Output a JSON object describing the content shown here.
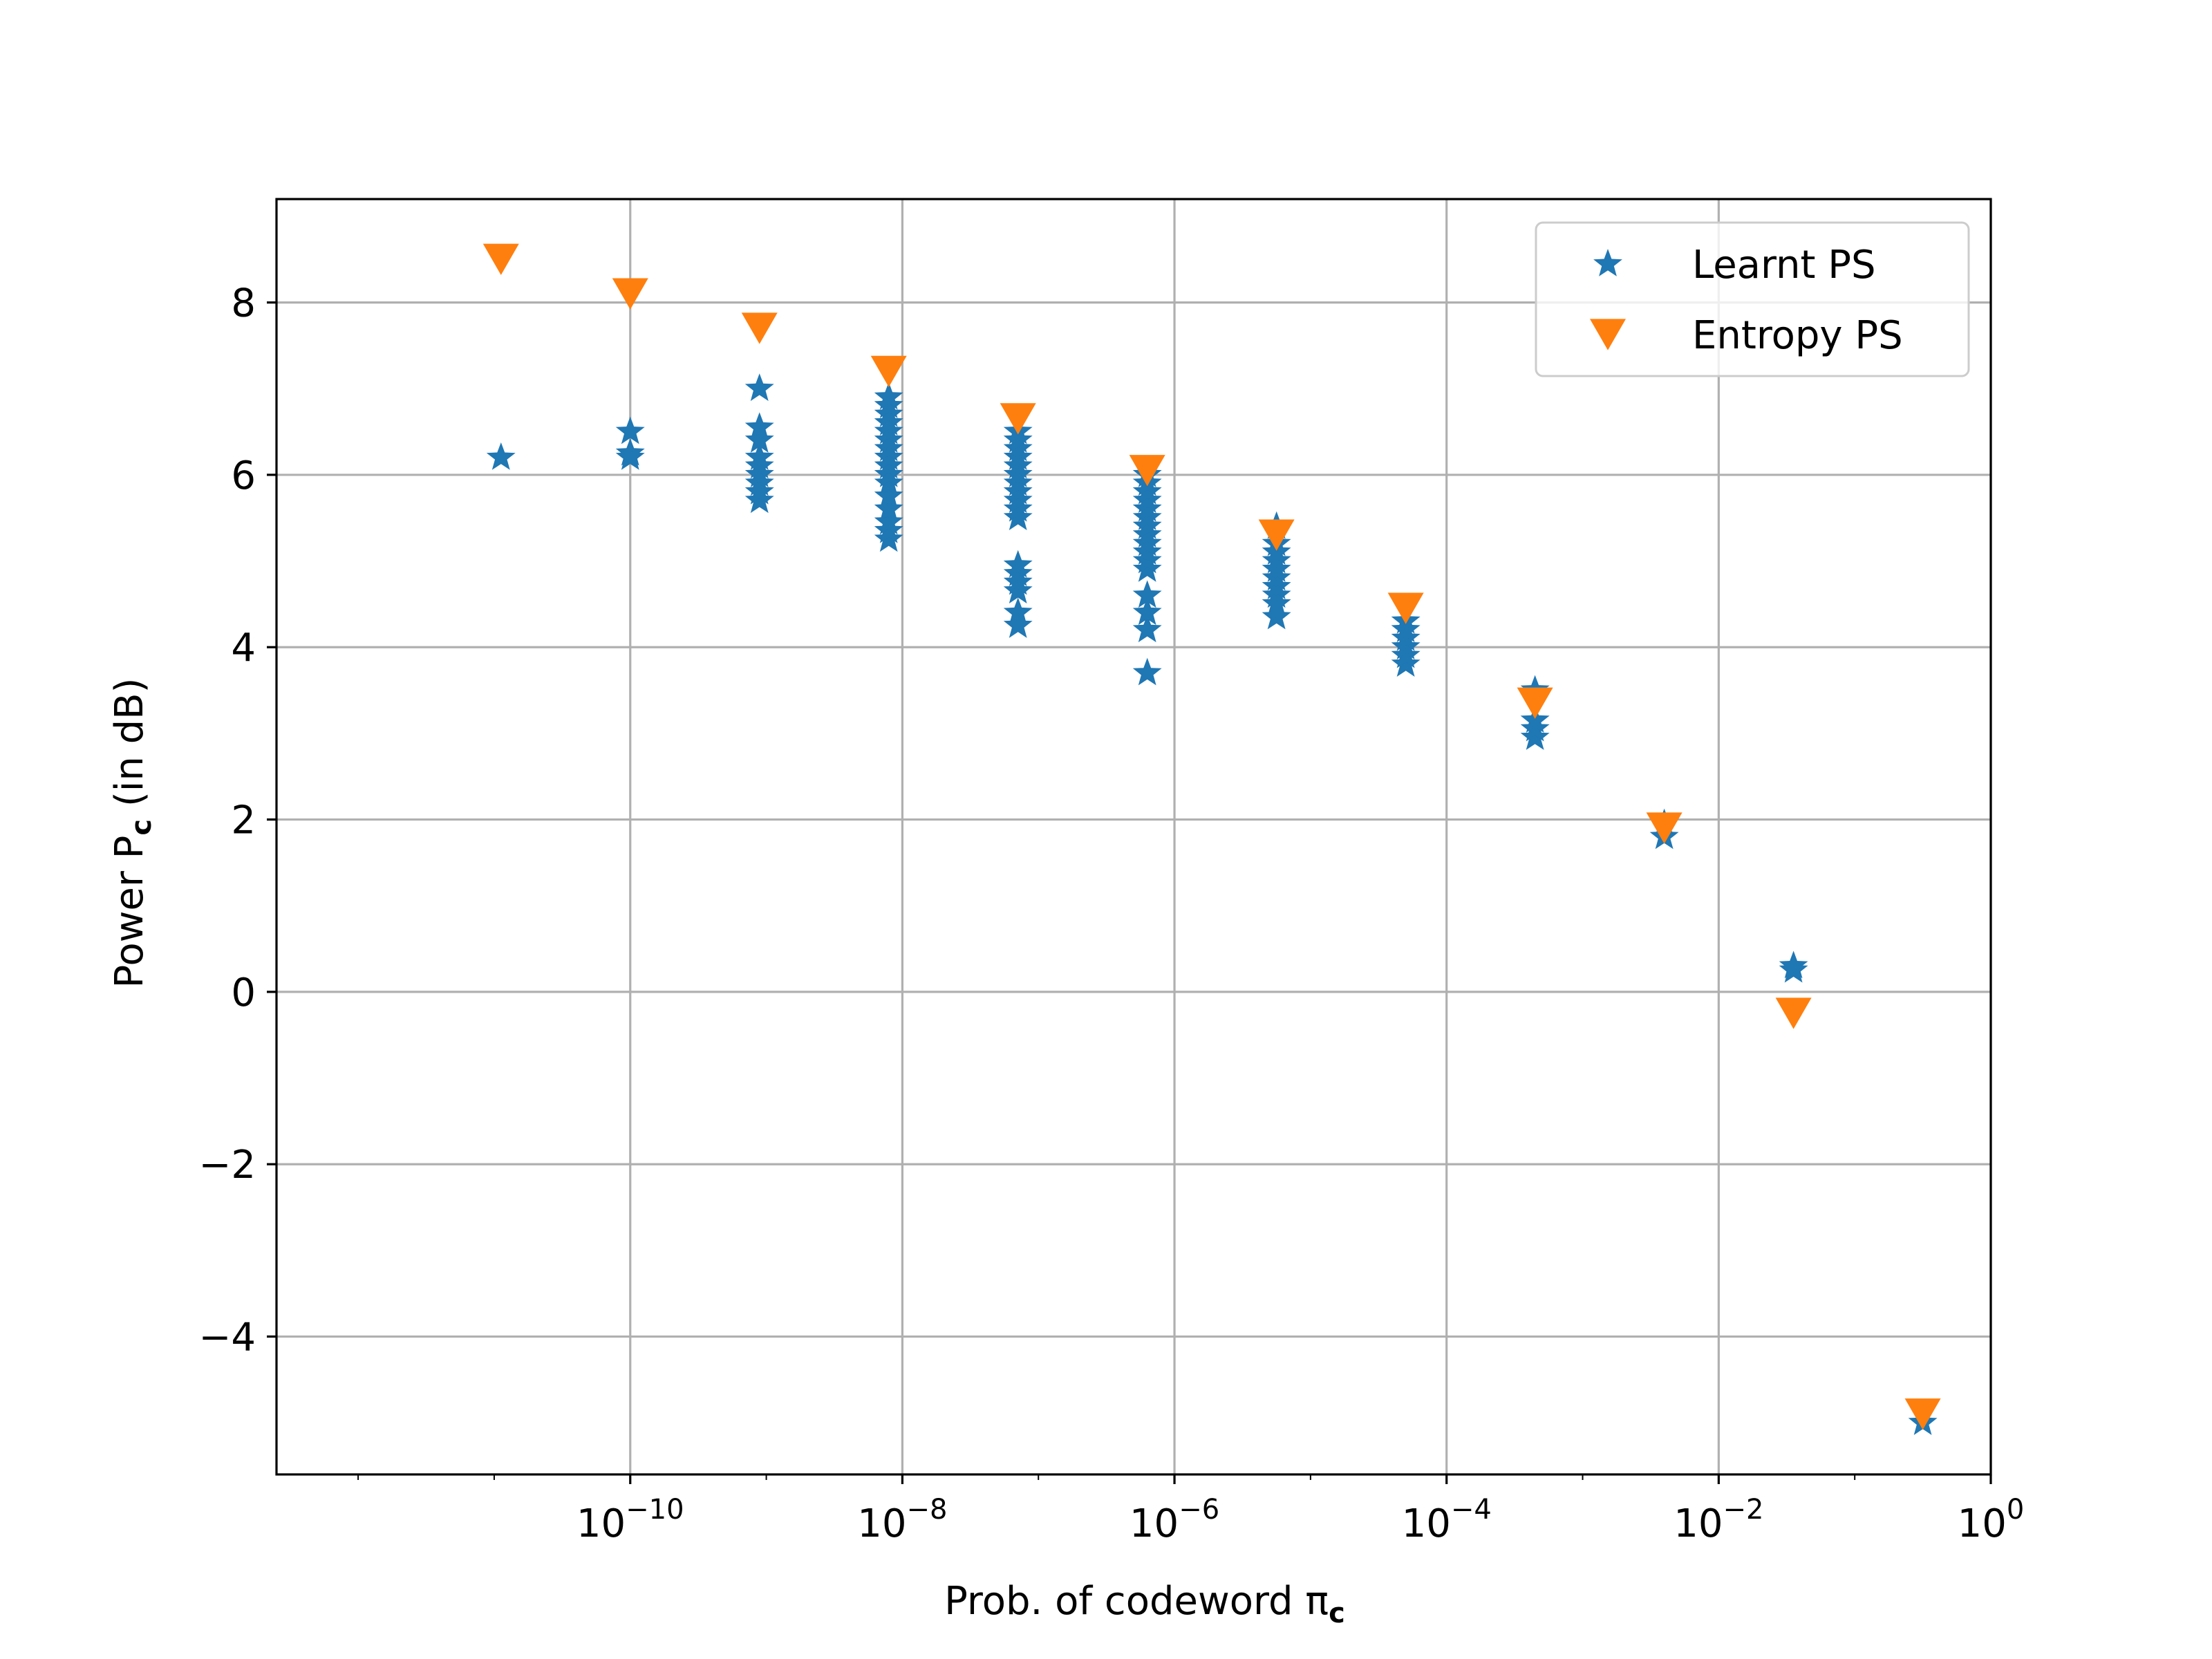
{
  "chart_data": {
    "type": "scatter",
    "title": "",
    "xlabel": "Prob. of codeword π",
    "xlabel_sub": "c",
    "ylabel": "Power P",
    "ylabel_sub": "c",
    "ylabel_suffix": " (in dB)",
    "xscale": "log",
    "xlim_log10": [
      -12.6,
      0.0
    ],
    "ylim": [
      -5.6,
      9.2
    ],
    "grid": true,
    "legend_position": "top-right",
    "x_ticks": [
      {
        "base": "10",
        "exp": "−10"
      },
      {
        "base": "10",
        "exp": "−8"
      },
      {
        "base": "10",
        "exp": "−6"
      },
      {
        "base": "10",
        "exp": "−4"
      },
      {
        "base": "10",
        "exp": "−2"
      },
      {
        "base": "10",
        "exp": "0"
      }
    ],
    "x_tick_values_log10": [
      -10,
      -8,
      -6,
      -4,
      -2,
      0
    ],
    "y_ticks": [
      {
        "value": 8,
        "label": "8"
      },
      {
        "value": 6,
        "label": "6"
      },
      {
        "value": 4,
        "label": "4"
      },
      {
        "value": 2,
        "label": "2"
      },
      {
        "value": 0,
        "label": "0"
      },
      {
        "value": -2,
        "label": "−2"
      },
      {
        "value": -4,
        "label": "−4"
      }
    ],
    "series": [
      {
        "name": "Learnt PS",
        "marker": "star",
        "color": "#1f77b4",
        "groups": [
          {
            "log10x": -10.95,
            "y": [
              6.2
            ]
          },
          {
            "log10x": -10.0,
            "y": [
              6.2,
              6.25,
              6.5
            ]
          },
          {
            "log10x": -9.05,
            "y": [
              5.7,
              5.8,
              5.9,
              6.0,
              6.1,
              6.2,
              6.4,
              6.55,
              7.0
            ]
          },
          {
            "log10x": -8.1,
            "y": [
              5.25,
              5.35,
              5.45,
              5.6,
              5.75,
              5.9,
              6.0,
              6.1,
              6.2,
              6.3,
              6.4,
              6.5,
              6.6,
              6.7,
              6.8,
              6.9
            ]
          },
          {
            "log10x": -7.15,
            "y": [
              4.25,
              4.4,
              4.65,
              4.75,
              4.85,
              4.95,
              5.5,
              5.6,
              5.7,
              5.8,
              5.9,
              6.0,
              6.1,
              6.2,
              6.3,
              6.4,
              6.5
            ]
          },
          {
            "log10x": -6.2,
            "y": [
              3.7,
              4.2,
              4.4,
              4.6,
              4.9,
              5.0,
              5.1,
              5.2,
              5.3,
              5.4,
              5.5,
              5.6,
              5.7,
              5.8,
              5.9,
              6.0
            ]
          },
          {
            "log10x": -5.25,
            "y": [
              4.35,
              4.5,
              4.6,
              4.7,
              4.8,
              4.9,
              5.0,
              5.1,
              5.2,
              5.4
            ]
          },
          {
            "log10x": -4.3,
            "y": [
              3.8,
              3.9,
              4.0,
              4.1,
              4.2,
              4.3
            ]
          },
          {
            "log10x": -3.35,
            "y": [
              2.95,
              3.05,
              3.15,
              3.5
            ]
          },
          {
            "log10x": -2.4,
            "y": [
              1.8,
              1.95
            ]
          },
          {
            "log10x": -1.45,
            "y": [
              0.25,
              0.3
            ]
          },
          {
            "log10x": -0.5,
            "y": [
              -5.0
            ]
          }
        ]
      },
      {
        "name": "Entropy PS",
        "marker": "triangle-down",
        "color": "#ff7f0e",
        "points": [
          {
            "log10x": -10.95,
            "y": 8.5
          },
          {
            "log10x": -10.0,
            "y": 8.1
          },
          {
            "log10x": -9.05,
            "y": 7.7
          },
          {
            "log10x": -8.1,
            "y": 7.2
          },
          {
            "log10x": -7.15,
            "y": 6.65
          },
          {
            "log10x": -6.2,
            "y": 6.05
          },
          {
            "log10x": -5.25,
            "y": 5.3
          },
          {
            "log10x": -4.3,
            "y": 4.45
          },
          {
            "log10x": -3.35,
            "y": 3.35
          },
          {
            "log10x": -2.4,
            "y": 1.9
          },
          {
            "log10x": -1.45,
            "y": -0.25
          },
          {
            "log10x": -0.5,
            "y": -4.9
          }
        ]
      }
    ]
  }
}
